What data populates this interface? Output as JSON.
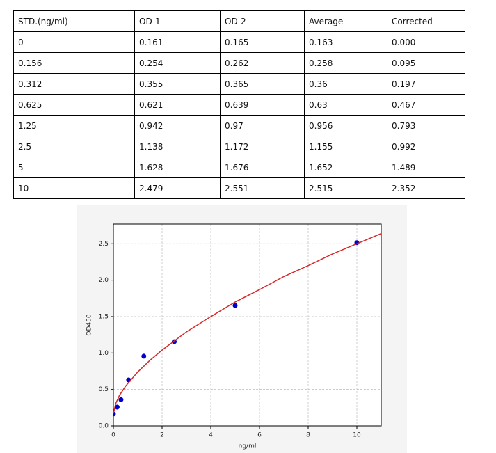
{
  "table": {
    "header": [
      "STD.(ng/ml)",
      "OD-1",
      "OD-2",
      "Average",
      "Corrected"
    ],
    "rows": [
      [
        "0",
        "0.161",
        "0.165",
        "0.163",
        "0.000"
      ],
      [
        "0.156",
        "0.254",
        "0.262",
        "0.258",
        "0.095"
      ],
      [
        "0.312",
        "0.355",
        "0.365",
        "0.36",
        "0.197"
      ],
      [
        "0.625",
        "0.621",
        "0.639",
        "0.63",
        "0.467"
      ],
      [
        "1.25",
        "0.942",
        "0.97",
        "0.956",
        "0.793"
      ],
      [
        "2.5",
        "1.138",
        "1.172",
        "1.155",
        "0.992"
      ],
      [
        "5",
        "1.628",
        "1.676",
        "1.652",
        "1.489"
      ],
      [
        "10",
        "2.479",
        "2.551",
        "2.515",
        "2.352"
      ]
    ]
  },
  "chart_data": {
    "type": "scatter",
    "xlabel": "ng/ml",
    "ylabel": "OD450",
    "xlim": [
      0,
      11
    ],
    "ylim": [
      0,
      2.77
    ],
    "xticks": [
      0,
      2,
      4,
      6,
      8,
      10
    ],
    "yticks": [
      {
        "value": 0,
        "label": "0.0"
      },
      0.5,
      {
        "value": 1,
        "label": "1.0"
      },
      1.5,
      {
        "value": 2,
        "label": "2.0"
      },
      2.5
    ],
    "grid": true,
    "series": [
      {
        "kind": "points",
        "color": "#0000cc",
        "x": [
          0,
          0.156,
          0.312,
          0.625,
          1.25,
          2.5,
          5,
          10
        ],
        "values": [
          0.163,
          0.258,
          0.36,
          0.63,
          0.956,
          1.155,
          1.652,
          2.515
        ]
      },
      {
        "kind": "line",
        "color": "#d62728",
        "x": [
          0,
          0.1,
          0.25,
          0.5,
          1,
          1.5,
          2,
          3,
          4,
          5,
          6,
          7,
          8,
          9,
          10,
          11
        ],
        "values": [
          0.17,
          0.31,
          0.42,
          0.545,
          0.74,
          0.9,
          1.04,
          1.29,
          1.5,
          1.7,
          1.87,
          2.05,
          2.2,
          2.36,
          2.5,
          2.64
        ]
      }
    ]
  }
}
